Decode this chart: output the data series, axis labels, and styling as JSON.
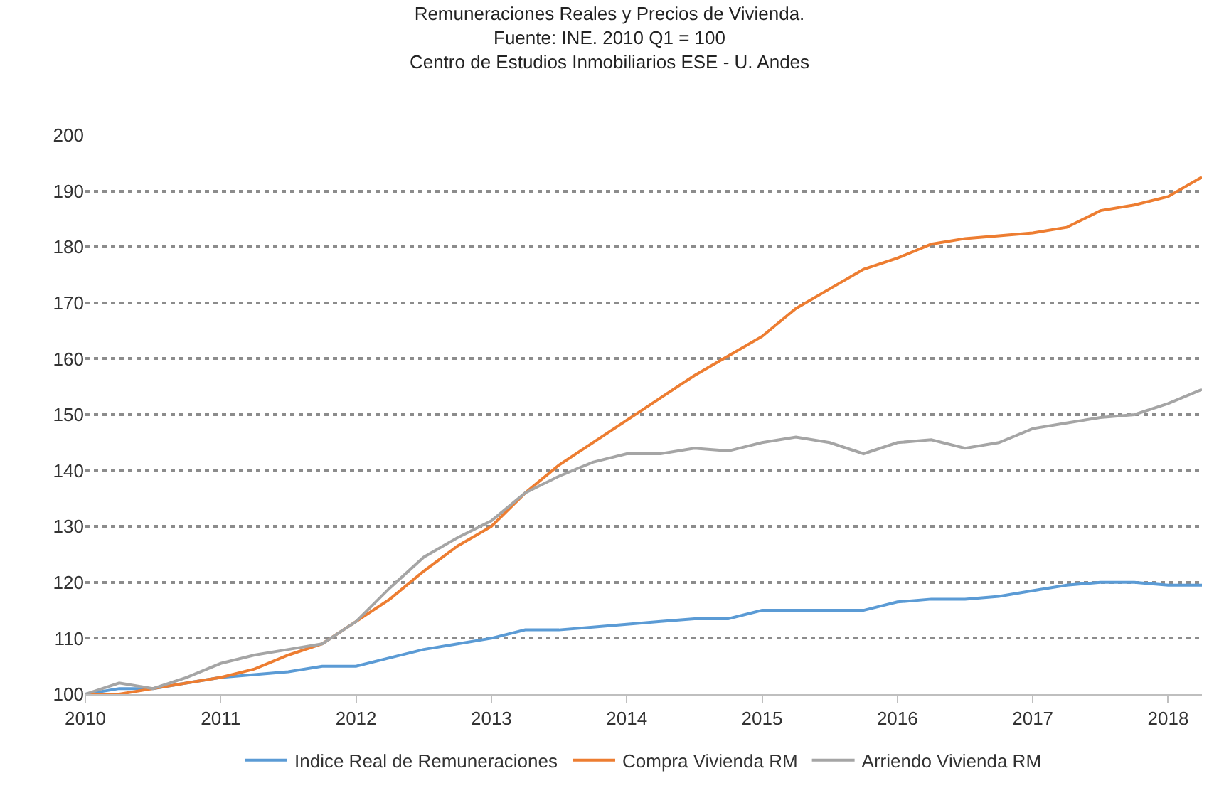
{
  "chart_data": {
    "type": "line",
    "title": "Remuneraciones Reales y Precios de Vivienda.\nFuente: INE. 2010 Q1 = 100\nCentro de Estudios Inmobiliarios ESE - U. Andes",
    "x": [
      2010.0,
      2010.25,
      2010.5,
      2010.75,
      2011.0,
      2011.25,
      2011.5,
      2011.75,
      2012.0,
      2012.25,
      2012.5,
      2012.75,
      2013.0,
      2013.25,
      2013.5,
      2013.75,
      2014.0,
      2014.25,
      2014.5,
      2014.75,
      2015.0,
      2015.25,
      2015.5,
      2015.75,
      2016.0,
      2016.25,
      2016.5,
      2016.75,
      2017.0,
      2017.25,
      2017.5,
      2017.75,
      2018.0,
      2018.25
    ],
    "series": [
      {
        "name": "Indice Real de Remuneraciones",
        "color": "#5b9bd5",
        "values": [
          100,
          101,
          101,
          102,
          103,
          103.5,
          104,
          105,
          105,
          106.5,
          108,
          109,
          110,
          111.5,
          111.5,
          112,
          112.5,
          113,
          113.5,
          113.5,
          115,
          115,
          115,
          115,
          116.5,
          117,
          117,
          117.5,
          118.5,
          119.5,
          120,
          120,
          119.5,
          119.5
        ]
      },
      {
        "name": "Compra Vivienda RM",
        "color": "#ed7d31",
        "values": [
          100,
          100,
          101,
          102,
          103,
          104.5,
          107,
          109,
          113,
          117,
          122,
          126.5,
          130,
          136,
          141,
          145,
          149,
          153,
          157,
          160.5,
          164,
          169,
          172.5,
          176,
          178,
          180.5,
          181.5,
          182,
          182.5,
          183.5,
          186.5,
          187.5,
          189,
          192.5
        ]
      },
      {
        "name": "Arriendo Vivienda RM",
        "color": "#a5a5a5",
        "values": [
          100,
          102,
          101,
          103,
          105.5,
          107,
          108,
          109,
          113,
          119,
          124.5,
          128,
          131,
          136,
          139,
          141.5,
          143,
          143,
          144,
          143.5,
          145,
          146,
          145,
          143,
          145,
          145.5,
          144,
          145,
          147.5,
          148.5,
          149.5,
          150,
          152,
          154.5
        ]
      }
    ],
    "xlim": [
      2010,
      2018.25
    ],
    "xticks": [
      2010,
      2011,
      2012,
      2013,
      2014,
      2015,
      2016,
      2017,
      2018
    ],
    "ylim": [
      100,
      200
    ],
    "yticks": [
      100,
      110,
      120,
      130,
      140,
      150,
      160,
      170,
      180,
      190,
      200
    ],
    "grid": "y",
    "legend": "bottom",
    "marker": "none",
    "line_style": "solid"
  }
}
